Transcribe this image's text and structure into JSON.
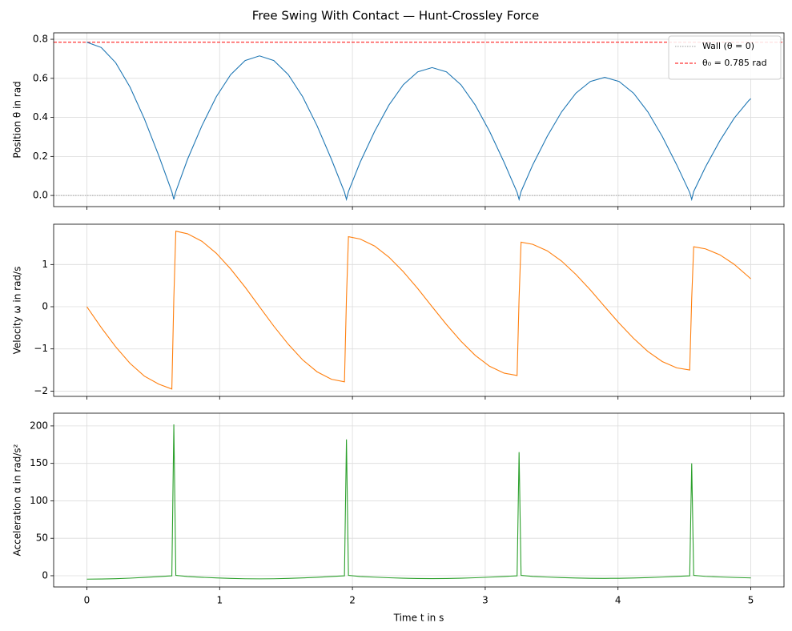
{
  "title": "Free Swing With Contact — Hunt-Crossley Force",
  "chart_data": [
    {
      "type": "line",
      "ylabel": "Position θ in rad",
      "color": "#1f77b4",
      "grid": true,
      "legend": "upper right",
      "xlim": [
        -0.25,
        5.25
      ],
      "xticks": [
        0,
        1,
        2,
        3,
        4,
        5
      ],
      "ylim": [
        -0.057,
        0.833
      ],
      "yticks": [
        {
          "value": 0,
          "label": "0.0"
        },
        0.2,
        0.4,
        0.6,
        0.8
      ],
      "x": [
        0,
        0.108,
        0.217,
        0.325,
        0.433,
        0.542,
        0.64,
        0.655,
        0.67,
        0.758,
        0.867,
        0.975,
        1.083,
        1.192,
        1.3,
        1.408,
        1.517,
        1.625,
        1.733,
        1.842,
        1.94,
        1.955,
        1.97,
        2.058,
        2.167,
        2.275,
        2.383,
        2.492,
        2.6,
        2.708,
        2.817,
        2.925,
        3.033,
        3.142,
        3.24,
        3.255,
        3.27,
        3.358,
        3.467,
        3.575,
        3.683,
        3.792,
        3.9,
        4.008,
        4.117,
        4.225,
        4.333,
        4.442,
        4.54,
        4.555,
        4.57,
        4.658,
        4.767,
        4.875,
        4.983,
        5.0
      ],
      "values": [
        0.785,
        0.758,
        0.68,
        0.555,
        0.393,
        0.203,
        0.019,
        -0.02,
        0.02,
        0.185,
        0.358,
        0.506,
        0.619,
        0.691,
        0.715,
        0.691,
        0.619,
        0.506,
        0.358,
        0.185,
        0.017,
        -0.02,
        0.02,
        0.17,
        0.328,
        0.463,
        0.567,
        0.633,
        0.655,
        0.633,
        0.567,
        0.463,
        0.328,
        0.17,
        0.016,
        -0.02,
        0.02,
        0.157,
        0.303,
        0.428,
        0.524,
        0.584,
        0.605,
        0.584,
        0.524,
        0.428,
        0.303,
        0.157,
        0.015,
        -0.02,
        0.02,
        0.145,
        0.28,
        0.396,
        0.485,
        0.496
      ],
      "hlines": [
        {
          "name": "Wall (θ = 0)",
          "value": 0,
          "color": "#808080",
          "style": "dotted"
        },
        {
          "name": "θ₀ = 0.785 rad",
          "value": 0.785,
          "color": "#ff0000",
          "style": "dashed"
        }
      ]
    },
    {
      "type": "line",
      "ylabel": "Velocity ω in rad/s",
      "color": "#ff7f0e",
      "grid": true,
      "xlim": [
        -0.25,
        5.25
      ],
      "xticks": [
        0,
        1,
        2,
        3,
        4,
        5
      ],
      "ylim": [
        -2.125,
        1.955
      ],
      "yticks": [
        {
          "value": -2,
          "label": "−2"
        },
        {
          "value": -1,
          "label": "−1"
        },
        0,
        1
      ],
      "x": [
        0,
        0.108,
        0.217,
        0.325,
        0.433,
        0.542,
        0.64,
        0.655,
        0.67,
        0.758,
        0.867,
        0.975,
        1.083,
        1.192,
        1.3,
        1.408,
        1.517,
        1.625,
        1.733,
        1.842,
        1.94,
        1.955,
        1.97,
        2.058,
        2.167,
        2.275,
        2.383,
        2.492,
        2.6,
        2.708,
        2.817,
        2.925,
        3.033,
        3.142,
        3.24,
        3.255,
        3.27,
        3.358,
        3.467,
        3.575,
        3.683,
        3.792,
        3.9,
        4.008,
        4.117,
        4.225,
        4.333,
        4.442,
        4.54,
        4.555,
        4.57,
        4.658,
        4.767,
        4.875,
        4.983,
        5.0
      ],
      "values": [
        0,
        -0.492,
        -0.95,
        -1.343,
        -1.645,
        -1.835,
        -1.95,
        0.2,
        1.79,
        1.729,
        1.55,
        1.266,
        0.895,
        0.463,
        0,
        -0.461,
        -0.89,
        -1.259,
        -1.541,
        -1.719,
        -1.78,
        0.2,
        1.66,
        1.604,
        1.438,
        1.174,
        0.83,
        0.43,
        0,
        -0.422,
        -0.815,
        -1.153,
        -1.412,
        -1.574,
        -1.63,
        0.2,
        1.53,
        1.478,
        1.325,
        1.082,
        0.765,
        0.396,
        0,
        -0.389,
        -0.75,
        -1.061,
        -1.299,
        -1.449,
        -1.5,
        0.2,
        1.42,
        1.372,
        1.23,
        1.004,
        0.71,
        0.66
      ]
    },
    {
      "type": "line",
      "ylabel": "Acceleration α in rad/s²",
      "xlabel": "Time t in s",
      "color": "#2ca02c",
      "grid": true,
      "xlim": [
        -0.25,
        5.25
      ],
      "xticks": [
        0,
        1,
        2,
        3,
        4,
        5
      ],
      "ylim": [
        -15,
        217
      ],
      "yticks": [
        0,
        50,
        100,
        150,
        200
      ],
      "x": [
        0,
        0.108,
        0.217,
        0.325,
        0.433,
        0.542,
        0.64,
        0.655,
        0.67,
        0.758,
        0.867,
        0.975,
        1.083,
        1.192,
        1.3,
        1.408,
        1.517,
        1.625,
        1.733,
        1.842,
        1.94,
        1.955,
        1.97,
        2.058,
        2.167,
        2.275,
        2.383,
        2.492,
        2.6,
        2.708,
        2.817,
        2.925,
        3.033,
        3.142,
        3.24,
        3.255,
        3.27,
        3.358,
        3.467,
        3.575,
        3.683,
        3.792,
        3.9,
        4.008,
        4.117,
        4.225,
        4.333,
        4.442,
        4.54,
        4.555,
        4.57,
        4.658,
        4.767,
        4.875,
        4.983,
        5.0
      ],
      "values": [
        -4.58,
        -4.43,
        -3.97,
        -3.24,
        -2.29,
        -1.19,
        -0.1,
        202,
        0.5,
        -1.08,
        -2.09,
        -2.95,
        -3.62,
        -4.03,
        -4.18,
        -4.03,
        -3.62,
        -2.95,
        -2.09,
        -1.08,
        -0.1,
        182,
        0.5,
        -0.99,
        -1.91,
        -2.7,
        -3.31,
        -3.7,
        -3.83,
        -3.7,
        -3.31,
        -2.7,
        -1.91,
        -0.99,
        -0.1,
        165,
        0.5,
        -0.92,
        -1.77,
        -2.5,
        -3.06,
        -3.41,
        -3.53,
        -3.41,
        -3.06,
        -2.5,
        -1.77,
        -0.92,
        -0.1,
        150,
        0.5,
        -0.85,
        -1.64,
        -2.31,
        -2.83,
        -2.9
      ]
    }
  ]
}
